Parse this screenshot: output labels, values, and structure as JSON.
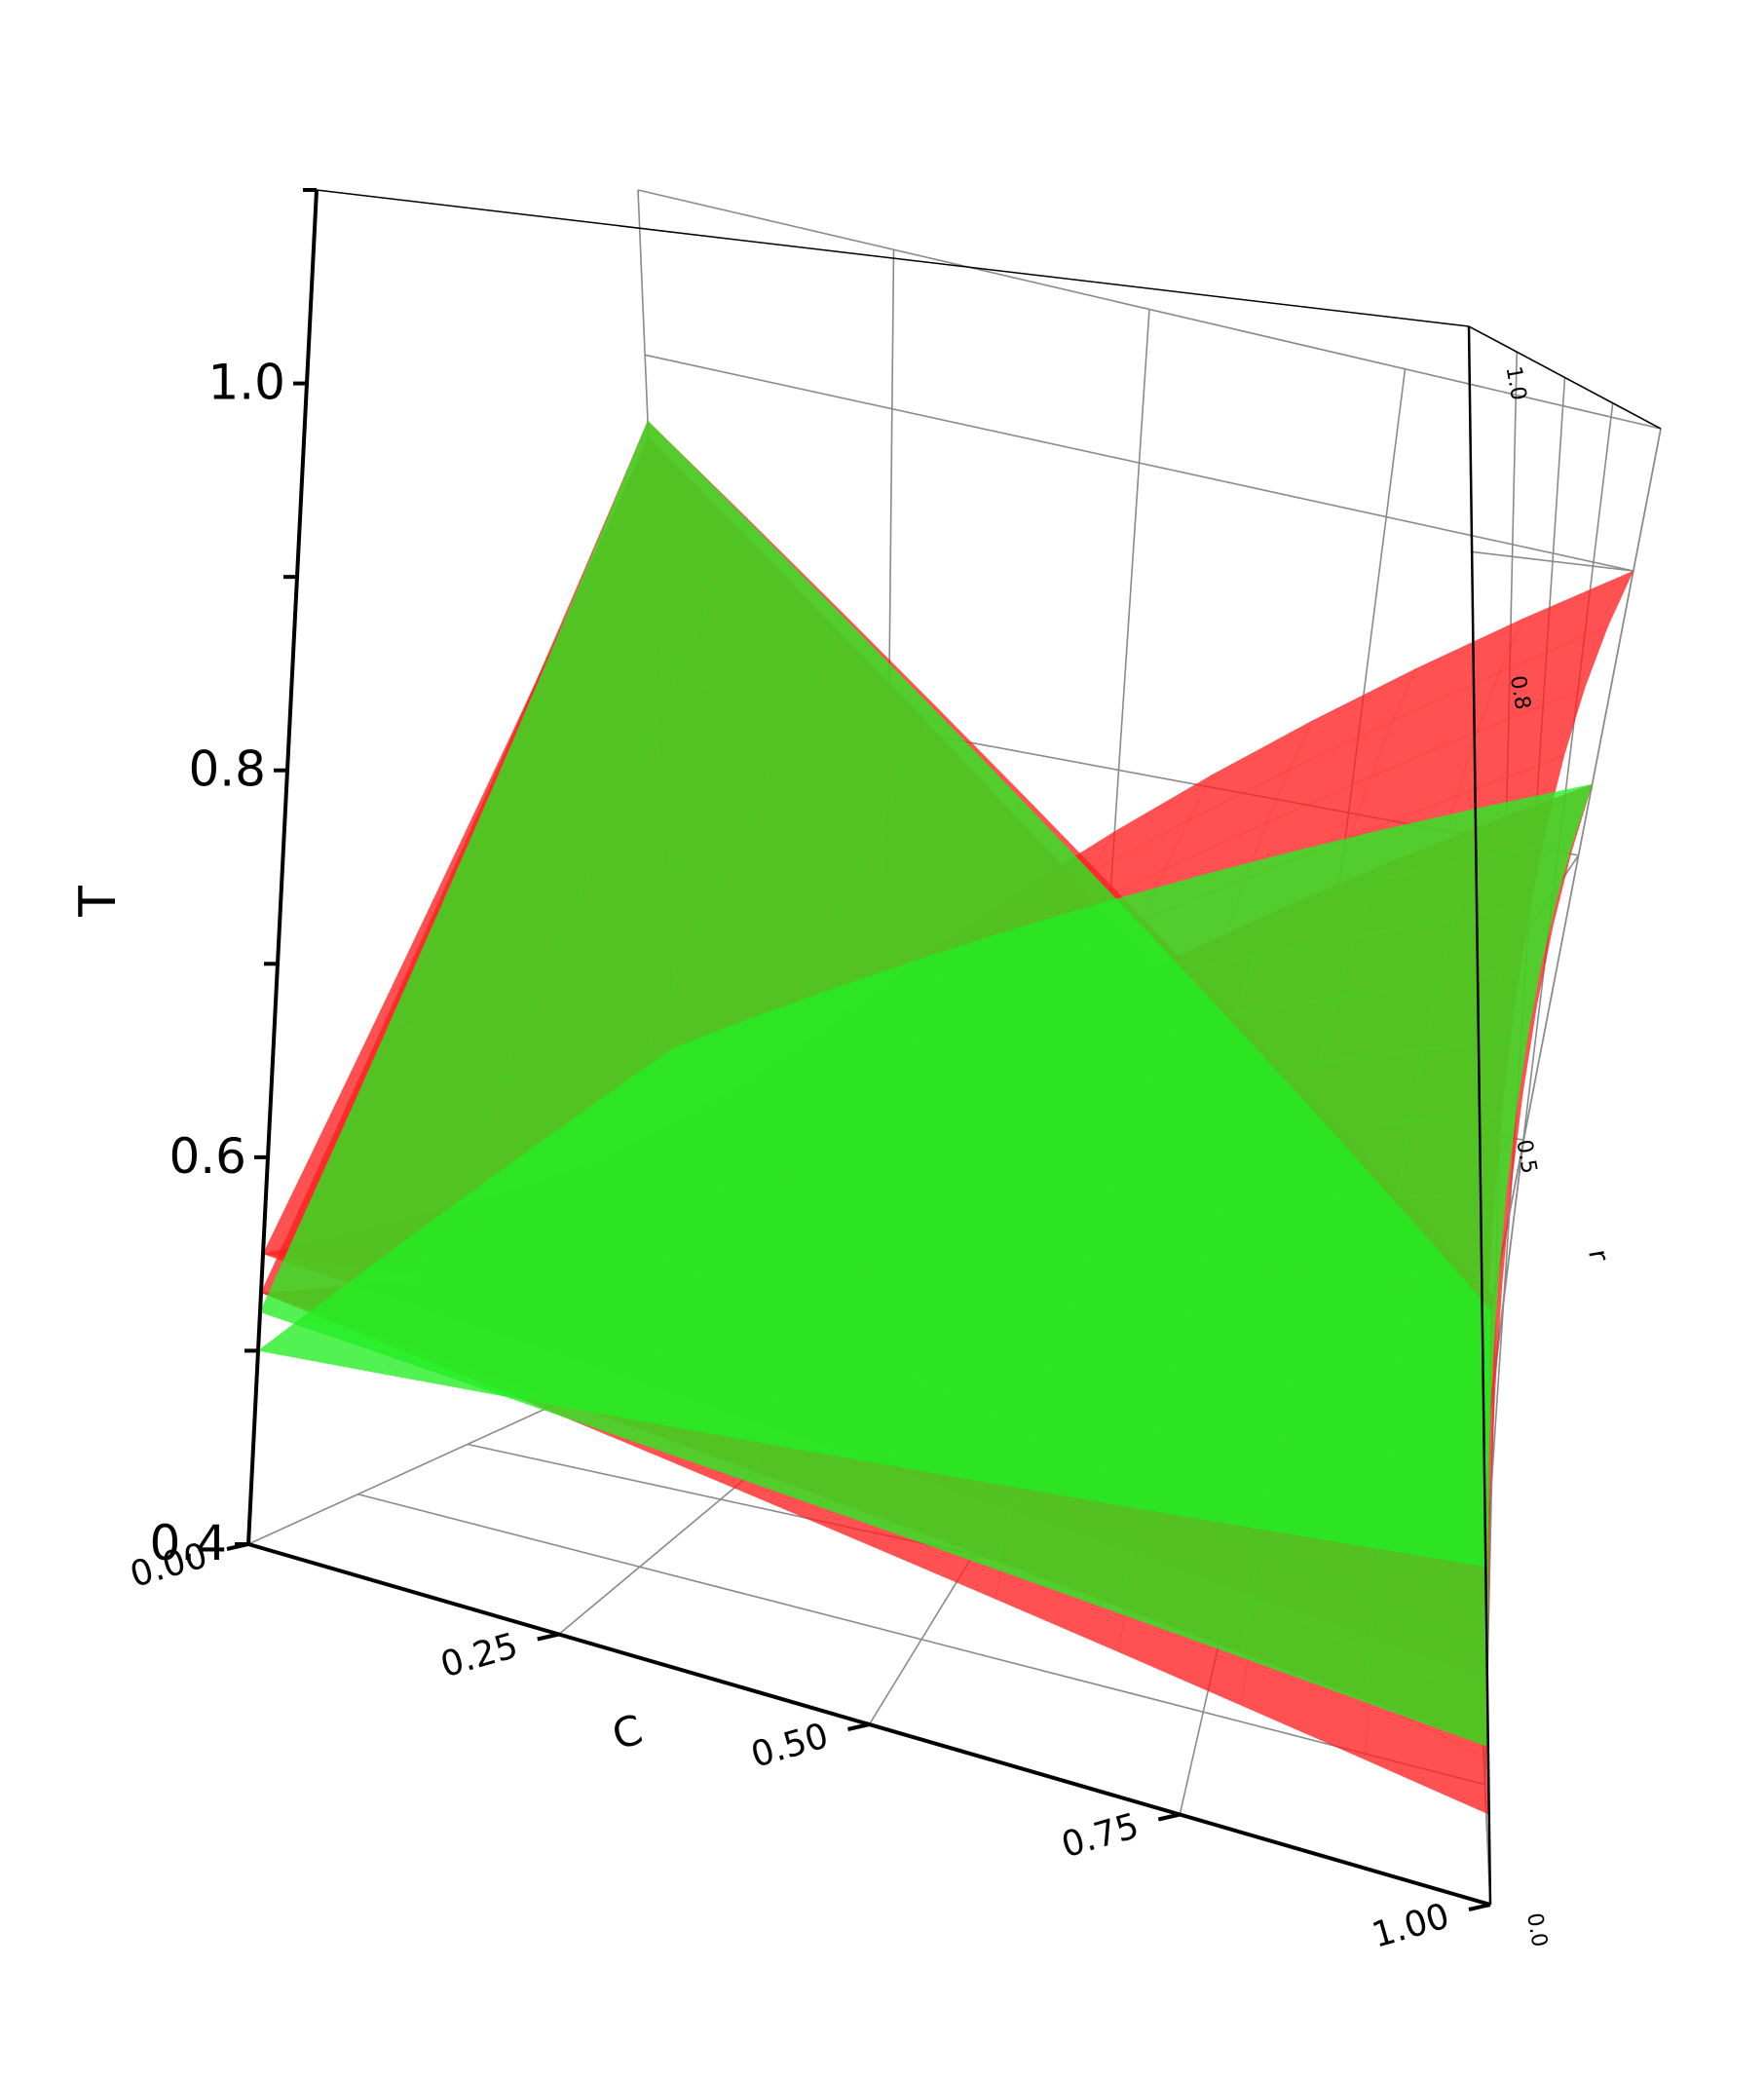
{
  "chart_data": {
    "type": "surface3d",
    "title": "",
    "axes": {
      "z": {
        "label": "T",
        "range": [
          0.4,
          1.1
        ],
        "ticks": [
          "0.4",
          "0.6",
          "0.8",
          "1.0"
        ]
      },
      "x": {
        "label": "C",
        "range": [
          0.0,
          1.0
        ],
        "ticks": [
          "0.00",
          "0.25",
          "0.50",
          "0.75",
          "1.00"
        ]
      },
      "y": {
        "label": "r",
        "range": [
          0.0,
          1.0
        ],
        "ticks": [
          "0.0",
          "0.5",
          "0.8",
          "1.0"
        ]
      }
    },
    "grid": true,
    "legend": "none",
    "series": [
      {
        "color": "#ff2020",
        "corners_z": {
          "c0_r0": 0.53,
          "c0_r1": 0.96,
          "c1_r1": 0.49,
          "c1_r0": 0.44
        }
      },
      {
        "color": "#ff2020",
        "corners_z": {
          "c0_r0": 0.55,
          "c0_r1": 0.52,
          "c1_r1": 1.0,
          "c1_r0": 0.62
        }
      },
      {
        "color": "#ff2020",
        "corners_z": {
          "c0_r0": 0.53,
          "c0_r1": 0.46,
          "c1_r1": 0.85,
          "c1_r0": 0.47
        }
      },
      {
        "color": "#ff2020",
        "corners_z": {
          "c0_r0": 0.55,
          "c0_r1": 0.95,
          "c1_r1": 0.46,
          "c1_r0": 0.5
        }
      },
      {
        "color": "#22ee22",
        "corners_z": {
          "c0_r0": 0.52,
          "c0_r1": 0.96,
          "c1_r1": 0.48,
          "c1_r0": 0.47
        }
      },
      {
        "color": "#22ee22",
        "corners_z": {
          "c0_r0": 0.5,
          "c0_r1": 0.58,
          "c1_r1": 0.85,
          "c1_r0": 0.55
        }
      }
    ]
  }
}
